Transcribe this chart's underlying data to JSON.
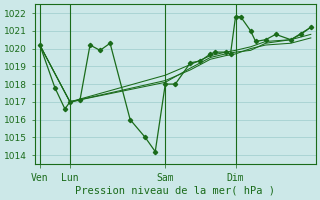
{
  "title": "Pression niveau de la mer( hPa )",
  "bg_color": "#cce8e8",
  "grid_color": "#aad4d4",
  "line_color": "#1a6b1a",
  "axis_color": "#2d7a2d",
  "ylim": [
    1013.5,
    1022.5
  ],
  "yticks": [
    1014,
    1015,
    1016,
    1017,
    1018,
    1019,
    1020,
    1021,
    1022
  ],
  "day_labels": [
    "Ven",
    "Lun",
    "Sam",
    "Dim"
  ],
  "day_positions": [
    0.5,
    3.5,
    13.0,
    20.0
  ],
  "day_vlines": [
    0.5,
    3.5,
    13.0,
    20.0
  ],
  "xlim": [
    0.0,
    28.0
  ],
  "series": [
    [
      0.5,
      1020.2,
      2.0,
      1017.8,
      3.0,
      1016.6,
      3.5,
      1017.0,
      4.5,
      1017.1,
      5.5,
      1020.2,
      6.5,
      1019.9,
      7.5,
      1020.3,
      9.5,
      1016.0,
      11.0,
      1015.0,
      12.0,
      1014.2,
      13.0,
      1018.0,
      14.0,
      1018.0,
      15.5,
      1019.2,
      16.5,
      1019.3,
      17.5,
      1019.7,
      18.0,
      1019.8,
      19.0,
      1019.8,
      19.5,
      1019.7,
      20.0,
      1021.8,
      20.5,
      1021.8,
      21.5,
      1021.0,
      22.0,
      1020.4,
      23.0,
      1020.5,
      24.0,
      1020.8,
      25.5,
      1020.5,
      26.5,
      1020.8,
      27.5,
      1021.2
    ],
    [
      0.5,
      1020.2,
      3.5,
      1017.0,
      13.0,
      1018.1,
      15.5,
      1018.9,
      17.5,
      1019.5,
      19.0,
      1019.7,
      20.0,
      1019.8,
      21.5,
      1019.9,
      23.0,
      1020.3,
      25.5,
      1020.5,
      27.5,
      1021.2
    ],
    [
      0.5,
      1020.2,
      3.5,
      1017.0,
      13.0,
      1018.5,
      15.5,
      1019.1,
      17.5,
      1019.6,
      19.0,
      1019.8,
      20.0,
      1019.9,
      21.5,
      1020.1,
      23.0,
      1020.4,
      25.5,
      1020.5,
      27.5,
      1020.8
    ],
    [
      0.5,
      1020.2,
      3.5,
      1017.0,
      13.0,
      1018.2,
      15.5,
      1018.8,
      17.5,
      1019.4,
      19.0,
      1019.6,
      20.0,
      1019.7,
      21.5,
      1020.0,
      23.0,
      1020.2,
      25.5,
      1020.3,
      27.5,
      1020.6
    ]
  ],
  "ylabel_fontsize": 6.5,
  "xlabel_fontsize": 7.5,
  "tick_fontsize": 6.5,
  "label_fontsize": 7.0
}
